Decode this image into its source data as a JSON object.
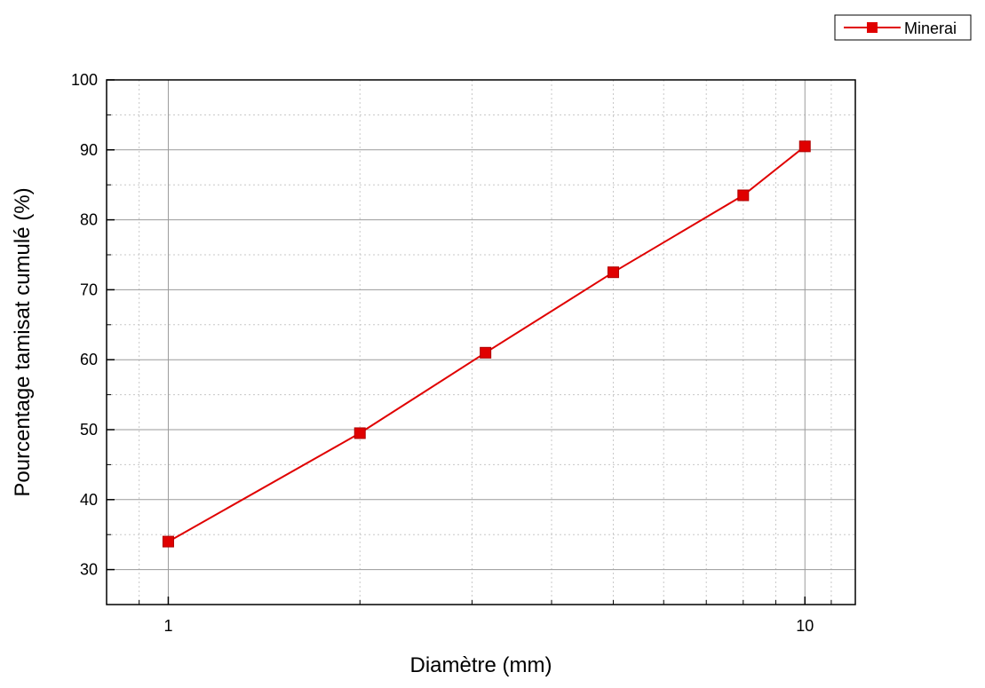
{
  "chart_data": {
    "type": "line",
    "xlabel": "Diamètre (mm)",
    "ylabel": "Pourcentage tamisat cumulé (%)",
    "x_scale": "log",
    "xlim": [
      0.8,
      12
    ],
    "ylim": [
      25,
      100
    ],
    "x_major_ticks": [
      1,
      10
    ],
    "y_major_ticks": [
      30,
      40,
      50,
      60,
      70,
      80,
      90,
      100
    ],
    "x_tick_labels": [
      "1",
      "10"
    ],
    "y_tick_labels": [
      "30",
      "40",
      "50",
      "60",
      "70",
      "80",
      "90",
      "100"
    ],
    "grid": true,
    "legend_position": "top-right",
    "series": [
      {
        "name": "Minerai",
        "color": "#e00000",
        "marker": "square",
        "x": [
          1,
          2,
          3.15,
          5,
          8,
          10
        ],
        "y": [
          34,
          49.5,
          61,
          72.5,
          83.5,
          90.5
        ]
      }
    ]
  }
}
